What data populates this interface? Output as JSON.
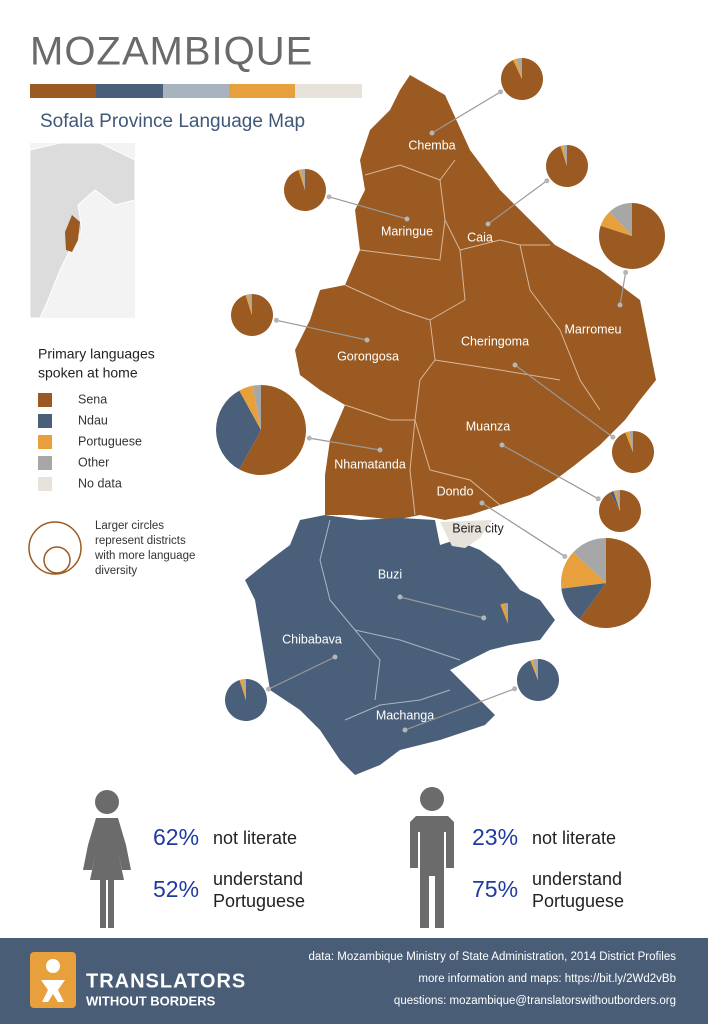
{
  "header": {
    "title": "MOZAMBIQUE",
    "subtitle": "Sofala Province Language Map"
  },
  "legend": {
    "title_lines": [
      "Primary languages",
      "spoken at home"
    ],
    "items": [
      {
        "label": "Sena",
        "color": "#9a5a22"
      },
      {
        "label": "Ndau",
        "color": "#4a5f7a"
      },
      {
        "label": "Portuguese",
        "color": "#e8a03c"
      },
      {
        "label": "Other",
        "color": "#a7a7a7"
      },
      {
        "label": "No data",
        "color": "#e7e2da"
      }
    ],
    "size_note_lines": [
      "Larger circles",
      "represent districts",
      "with more language",
      "diversity"
    ]
  },
  "districts": [
    {
      "name": "Chemba",
      "shares": [
        93,
        0,
        3,
        4
      ]
    },
    {
      "name": "Maringue",
      "shares": [
        95,
        0,
        2,
        3
      ]
    },
    {
      "name": "Caia",
      "shares": [
        95,
        0,
        2,
        3
      ]
    },
    {
      "name": "Marromeu",
      "shares": [
        80,
        0,
        8,
        12
      ]
    },
    {
      "name": "Gorongosa",
      "shares": [
        95,
        0,
        2,
        3
      ]
    },
    {
      "name": "Cheringoma",
      "shares": [
        94,
        0,
        3,
        3
      ]
    },
    {
      "name": "Nhamatanda",
      "shares": [
        58,
        34,
        5,
        3
      ]
    },
    {
      "name": "Muanza",
      "shares": [
        92,
        3,
        2,
        3
      ]
    },
    {
      "name": "Dondo",
      "shares": [
        60,
        13,
        14,
        13
      ]
    },
    {
      "name": "Buzi",
      "shares": [
        0,
        94,
        4,
        2
      ]
    },
    {
      "name": "Chibabava",
      "shares": [
        0,
        95,
        3,
        2
      ]
    },
    {
      "name": "Machanga",
      "shares": [
        0,
        94,
        2,
        4
      ]
    }
  ],
  "beira": "Beira city",
  "stats": [
    {
      "literacy": "62%",
      "literacy_label": "not literate",
      "portuguese": "52%",
      "portuguese_lines": [
        "understand",
        "Portuguese"
      ]
    },
    {
      "literacy": "23%",
      "literacy_label": "not literate",
      "portuguese": "75%",
      "portuguese_lines": [
        "understand",
        "Portuguese"
      ]
    }
  ],
  "footer": {
    "org": [
      "TRANSLATORS",
      "WITHOUT BORDERS"
    ],
    "lines": [
      "data: Mozambique Ministry of State Administration, 2014 District Profiles",
      "more information and maps: https://bit.ly/2Wd2vBb",
      "questions: mozambique@translatorswithoutborders.org"
    ]
  }
}
